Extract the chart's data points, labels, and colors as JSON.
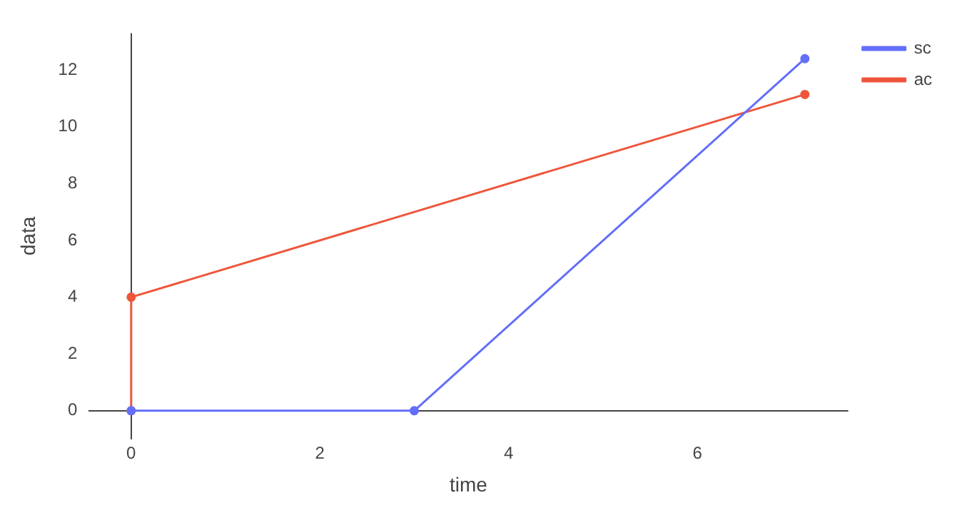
{
  "chart_data": {
    "type": "line",
    "xlabel": "time",
    "ylabel": "data",
    "xlim": [
      -0.45,
      7.6
    ],
    "ylim": [
      -1,
      13.3
    ],
    "xticks": [
      0,
      2,
      4,
      6
    ],
    "yticks": [
      0,
      2,
      4,
      6,
      8,
      10,
      12
    ],
    "legend": "top right",
    "marker": "circle",
    "series": [
      {
        "name": "sc",
        "color": "#636efa",
        "x": [
          0,
          3,
          7.14
        ],
        "values": [
          0,
          0,
          12.4
        ]
      },
      {
        "name": "ac",
        "color": "#ef553b",
        "x": [
          0,
          0,
          7.14
        ],
        "values": [
          0,
          4,
          11.14
        ]
      }
    ]
  }
}
